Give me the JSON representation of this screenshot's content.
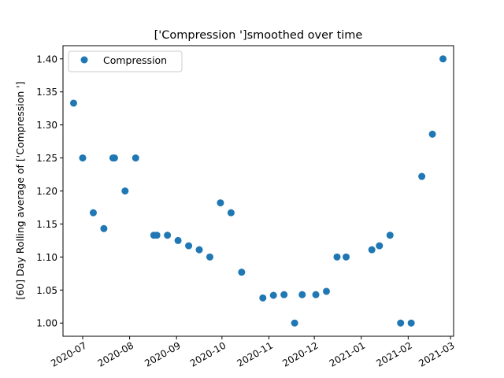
{
  "chart_data": {
    "type": "scatter",
    "title": "['Compression ']smoothed over time",
    "xlabel": "",
    "ylabel": "[60] Day Rolling average of ['Compression ']",
    "series": [
      {
        "name": "Compression",
        "color": "#1f77b4",
        "marker": "circle",
        "points": [
          {
            "x": "2020-06-25",
            "y": 1.333
          },
          {
            "x": "2020-07-01",
            "y": 1.25
          },
          {
            "x": "2020-07-08",
            "y": 1.167
          },
          {
            "x": "2020-07-15",
            "y": 1.143
          },
          {
            "x": "2020-07-21",
            "y": 1.25
          },
          {
            "x": "2020-07-22",
            "y": 1.25
          },
          {
            "x": "2020-07-29",
            "y": 1.2
          },
          {
            "x": "2020-08-05",
            "y": 1.25
          },
          {
            "x": "2020-08-17",
            "y": 1.133
          },
          {
            "x": "2020-08-19",
            "y": 1.133
          },
          {
            "x": "2020-08-26",
            "y": 1.133
          },
          {
            "x": "2020-09-02",
            "y": 1.125
          },
          {
            "x": "2020-09-09",
            "y": 1.117
          },
          {
            "x": "2020-09-16",
            "y": 1.111
          },
          {
            "x": "2020-09-23",
            "y": 1.1
          },
          {
            "x": "2020-09-30",
            "y": 1.182
          },
          {
            "x": "2020-10-07",
            "y": 1.167
          },
          {
            "x": "2020-10-14",
            "y": 1.077
          },
          {
            "x": "2020-10-28",
            "y": 1.038
          },
          {
            "x": "2020-11-04",
            "y": 1.042
          },
          {
            "x": "2020-11-11",
            "y": 1.043
          },
          {
            "x": "2020-11-18",
            "y": 1.0
          },
          {
            "x": "2020-11-23",
            "y": 1.043
          },
          {
            "x": "2020-12-02",
            "y": 1.043
          },
          {
            "x": "2020-12-09",
            "y": 1.048
          },
          {
            "x": "2020-12-16",
            "y": 1.1
          },
          {
            "x": "2020-12-22",
            "y": 1.1
          },
          {
            "x": "2021-01-08",
            "y": 1.111
          },
          {
            "x": "2021-01-13",
            "y": 1.117
          },
          {
            "x": "2021-01-20",
            "y": 1.133
          },
          {
            "x": "2021-01-27",
            "y": 1.0
          },
          {
            "x": "2021-02-03",
            "y": 1.0
          },
          {
            "x": "2021-02-10",
            "y": 1.222
          },
          {
            "x": "2021-02-17",
            "y": 1.286
          },
          {
            "x": "2021-02-24",
            "y": 1.4
          }
        ]
      }
    ],
    "xlim": [
      "2020-06-18",
      "2021-03-03"
    ],
    "ylim": [
      0.98,
      1.42
    ],
    "xticks": [
      "2020-07-01",
      "2020-08-01",
      "2020-09-01",
      "2020-10-01",
      "2020-11-01",
      "2020-12-01",
      "2021-01-01",
      "2021-02-01",
      "2021-03-01"
    ],
    "xtick_labels": [
      "2020-07",
      "2020-08",
      "2020-09",
      "2020-10",
      "2020-11",
      "2020-12",
      "2021-01",
      "2021-02",
      "2021-03"
    ],
    "yticks": [
      1.0,
      1.05,
      1.1,
      1.15,
      1.2,
      1.25,
      1.3,
      1.35,
      1.4
    ],
    "ytick_labels": [
      "1.00",
      "1.05",
      "1.10",
      "1.15",
      "1.20",
      "1.25",
      "1.30",
      "1.35",
      "1.40"
    ],
    "grid": false,
    "legend": {
      "position": "top-left",
      "entries": [
        "Compression"
      ]
    }
  }
}
